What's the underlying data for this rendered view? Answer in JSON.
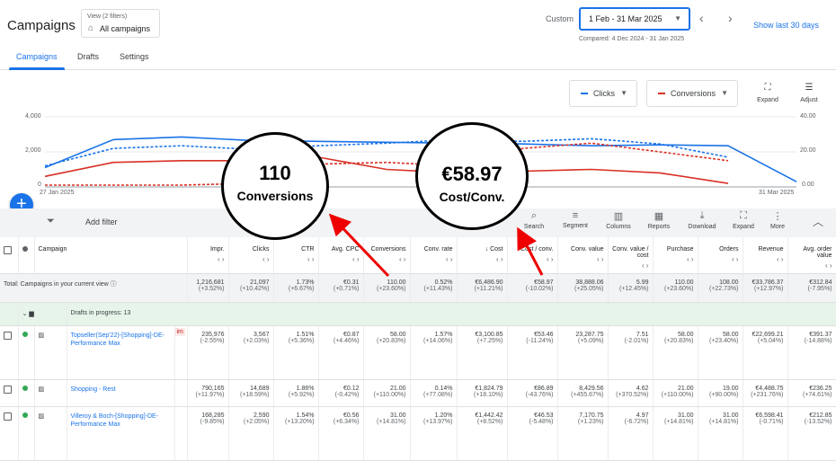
{
  "header": {
    "title": "Campaigns",
    "view_small": "View (2 filters)",
    "view_big": "All campaigns",
    "custom_label": "Custom",
    "date_range": "1 Feb - 31 Mar 2025",
    "compared": "Compared: 4 Dec 2024 - 31 Jan 2025",
    "show_last": "Show last 30 days"
  },
  "tabs": [
    "Campaigns",
    "Drafts",
    "Settings"
  ],
  "chart": {
    "metric1": "Clicks",
    "metric2": "Conversions",
    "metric1_color": "#1a73e8",
    "metric2_color": "#d93025",
    "expand": "Expand",
    "adjust": "Adjust",
    "y_left": [
      "4,000",
      "2,000",
      "0"
    ],
    "y_right": [
      "40.00",
      "20.00",
      "0.00"
    ],
    "x_start": "27 Jan 2025",
    "x_end": "31 Mar 2025"
  },
  "chart_data": {
    "type": "line",
    "series": [
      {
        "name": "Clicks",
        "axis": "left",
        "style": "solid",
        "color": "#1a73e8",
        "values": [
          1100,
          2700,
          2850,
          2650,
          2600,
          2550,
          2500,
          2450,
          2350,
          2400,
          2350,
          300
        ]
      },
      {
        "name": "Clicks",
        "axis": "left",
        "style": "dashed",
        "color": "#1a73e8",
        "values": [
          1200,
          2200,
          2350,
          2150,
          2350,
          2500,
          2700,
          2600,
          2750,
          2450,
          1700,
          null
        ]
      },
      {
        "name": "Conversions",
        "axis": "right",
        "style": "solid",
        "color": "#d93025",
        "values": [
          6,
          14,
          15,
          15,
          17,
          10,
          8,
          9,
          10,
          8,
          2,
          null
        ]
      },
      {
        "name": "Conversions",
        "axis": "right",
        "style": "dashed",
        "color": "#d93025",
        "values": [
          1,
          1,
          1,
          2,
          13,
          14,
          12,
          22,
          25,
          20,
          15,
          null
        ]
      }
    ],
    "ylim_left": [
      0,
      4000
    ],
    "ylim_right": [
      0,
      40
    ]
  },
  "annotations": [
    {
      "value": "110",
      "label": "Conversions"
    },
    {
      "value": "€58.97",
      "label": "Cost/Conv."
    }
  ],
  "toolbar": {
    "add_filter": "Add filter",
    "tools": [
      "Search",
      "Segment",
      "Columns",
      "Reports",
      "Download",
      "Expand",
      "More"
    ]
  },
  "table": {
    "headers": [
      "Campaign",
      "Impr.",
      "Clicks",
      "CTR",
      "Avg. CPC",
      "Conversions",
      "Conv. rate",
      "Cost",
      "Cost / conv.",
      "Conv. value",
      "Conv. value / cost",
      "Purchase",
      "Orders",
      "Revenue",
      "Avg. order value"
    ],
    "total_label": "Total: Campaigns in your current view",
    "total": [
      [
        "1,216,681",
        "(+3.52%)"
      ],
      [
        "21,097",
        "(+10.42%)"
      ],
      [
        "1.73%",
        "(+6.67%)"
      ],
      [
        "€0.31",
        "(+0.71%)"
      ],
      [
        "110.00",
        "(+23.60%)"
      ],
      [
        "0.52%",
        "(+11.43%)"
      ],
      [
        "€6,486.90",
        "(+11.21%)"
      ],
      [
        "€58.97",
        "(-10.02%)"
      ],
      [
        "38,888.06",
        "(+25.05%)"
      ],
      [
        "5.99",
        "(+12.45%)"
      ],
      [
        "110.00",
        "(+23.60%)"
      ],
      [
        "108.00",
        "(+22.73%)"
      ],
      [
        "€33,786.37",
        "(+12.97%)"
      ],
      [
        "€312.84",
        "(-7.95%)"
      ]
    ],
    "drafts_label": "Drafts in progress: 13",
    "rows": [
      {
        "name": "Topseller(Sep'22)-[Shopping]-DE-Performance Max",
        "badge": "im",
        "values": [
          [
            "235,976",
            "(-2.55%)"
          ],
          [
            "3,567",
            "(+2.03%)"
          ],
          [
            "1.51%",
            "(+5.36%)"
          ],
          [
            "€0.87",
            "(+4.46%)"
          ],
          [
            "58.00",
            "(+20.83%)"
          ],
          [
            "1.57%",
            "(+14.06%)"
          ],
          [
            "€3,100.85",
            "(+7.25%)"
          ],
          [
            "€53.46",
            "(-11.24%)"
          ],
          [
            "23,287.75",
            "(+5.09%)"
          ],
          [
            "7.51",
            "(-2.01%)"
          ],
          [
            "58.00",
            "(+20.83%)"
          ],
          [
            "58.00",
            "(+23.40%)"
          ],
          [
            "€22,699.21",
            "(+5.04%)"
          ],
          [
            "€391.37",
            "(-14.88%)"
          ]
        ]
      },
      {
        "name": "Shopping - Rest",
        "badge": "",
        "values": [
          [
            "790,165",
            "(+11.97%)"
          ],
          [
            "14,689",
            "(+18.59%)"
          ],
          [
            "1.86%",
            "(+5.92%)"
          ],
          [
            "€0.12",
            "(-0.42%)"
          ],
          [
            "21.00",
            "(+110.00%)"
          ],
          [
            "0.14%",
            "(+77.08%)"
          ],
          [
            "€1,824.79",
            "(+18.10%)"
          ],
          [
            "€86.89",
            "(-43.76%)"
          ],
          [
            "8,429.56",
            "(+455.67%)"
          ],
          [
            "4.62",
            "(+370.52%)"
          ],
          [
            "21.00",
            "(+110.00%)"
          ],
          [
            "19.00",
            "(+90.00%)"
          ],
          [
            "€4,488.75",
            "(+231.76%)"
          ],
          [
            "€236.25",
            "(+74.61%)"
          ]
        ]
      },
      {
        "name": "Villeroy & Boch-[Shopping]-DE-Performance Max",
        "badge": "",
        "values": [
          [
            "168,285",
            "(-9.85%)"
          ],
          [
            "2,590",
            "(+2.05%)"
          ],
          [
            "1.54%",
            "(+13.20%)"
          ],
          [
            "€0.56",
            "(+6.34%)"
          ],
          [
            "31.00",
            "(+14.81%)"
          ],
          [
            "1.20%",
            "(+13.97%)"
          ],
          [
            "€1,442.42",
            "(+8.52%)"
          ],
          [
            "€46.53",
            "(-5.48%)"
          ],
          [
            "7,170.75",
            "(+1.23%)"
          ],
          [
            "4.97",
            "(-6.72%)"
          ],
          [
            "31.00",
            "(+14.81%)"
          ],
          [
            "31.00",
            "(+14.81%)"
          ],
          [
            "€6,598.41",
            "(-0.71%)"
          ],
          [
            "€212.85",
            "(-13.52%)"
          ]
        ]
      }
    ]
  }
}
